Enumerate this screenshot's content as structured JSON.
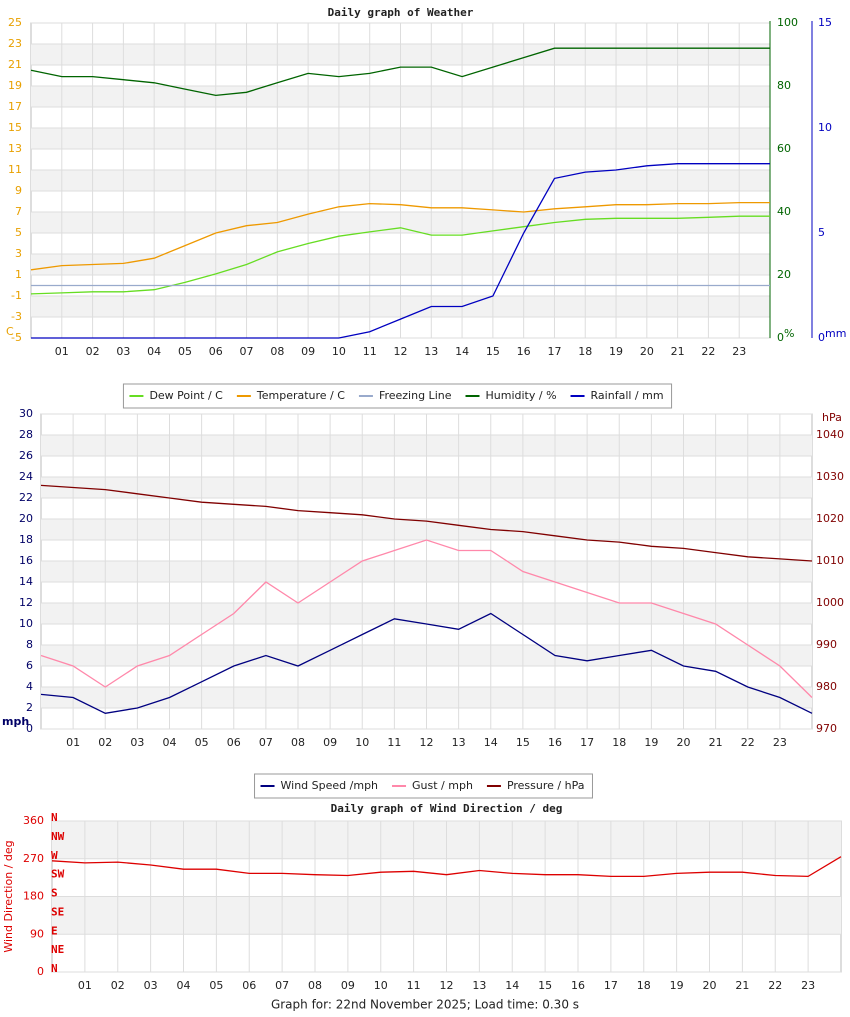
{
  "chart_data": [
    {
      "type": "line",
      "title": "Daily graph of Weather",
      "x": [
        0,
        1,
        2,
        3,
        4,
        5,
        6,
        7,
        8,
        9,
        10,
        11,
        12,
        13,
        14,
        15,
        16,
        17,
        18,
        19,
        20,
        21,
        22,
        23,
        24
      ],
      "xlim": [
        0,
        24
      ],
      "xticks": [
        {
          "value": 1,
          "label": "01"
        },
        {
          "value": 2,
          "label": "02"
        },
        {
          "value": 3,
          "label": "03"
        },
        {
          "value": 4,
          "label": "04"
        },
        {
          "value": 5,
          "label": "05"
        },
        {
          "value": 6,
          "label": "06"
        },
        {
          "value": 7,
          "label": "07"
        },
        {
          "value": 8,
          "label": "08"
        },
        {
          "value": 9,
          "label": "09"
        },
        {
          "value": 10,
          "label": "10"
        },
        {
          "value": 11,
          "label": "11"
        },
        {
          "value": 12,
          "label": "12"
        },
        {
          "value": 13,
          "label": "13"
        },
        {
          "value": 14,
          "label": "14"
        },
        {
          "value": 15,
          "label": "15"
        },
        {
          "value": 16,
          "label": "16"
        },
        {
          "value": 17,
          "label": "17"
        },
        {
          "value": 18,
          "label": "18"
        },
        {
          "value": 19,
          "label": "19"
        },
        {
          "value": 20,
          "label": "20"
        },
        {
          "value": 21,
          "label": "21"
        },
        {
          "value": 22,
          "label": "22"
        },
        {
          "value": 23,
          "label": "23"
        }
      ],
      "ylabel": "C",
      "ylim": [
        -5,
        25
      ],
      "yticks": [
        -5,
        -3,
        -1,
        1,
        3,
        5,
        7,
        9,
        11,
        13,
        15,
        17,
        19,
        21,
        23,
        25
      ],
      "ycolor": "#e8a000",
      "y2label": "%",
      "y2lim": [
        0,
        100
      ],
      "y2ticks": [
        0,
        20,
        40,
        60,
        80,
        100
      ],
      "y2color": "#006400",
      "y3label": "mm",
      "y3lim": [
        0,
        15
      ],
      "y3ticks": [
        0,
        5,
        10,
        15
      ],
      "y3color": "#0000c0",
      "grid": true,
      "series": [
        {
          "name": "Dew Point / C",
          "color": "#66dd22",
          "axis": "y",
          "values": [
            -0.8,
            -0.7,
            -0.6,
            -0.6,
            -0.4,
            0.3,
            1.1,
            2.0,
            3.2,
            4.0,
            4.7,
            5.1,
            5.5,
            4.8,
            4.8,
            5.2,
            5.6,
            6.0,
            6.3,
            6.4,
            6.4,
            6.4,
            6.5,
            6.6,
            6.6
          ]
        },
        {
          "name": "Temperature / C",
          "color": "#ee9900",
          "axis": "y",
          "values": [
            1.5,
            1.9,
            2.0,
            2.1,
            2.6,
            3.8,
            5.0,
            5.7,
            6.0,
            6.8,
            7.5,
            7.8,
            7.7,
            7.4,
            7.4,
            7.2,
            7.0,
            7.3,
            7.5,
            7.7,
            7.7,
            7.8,
            7.8,
            7.9,
            7.9
          ]
        },
        {
          "name": "Freezing Line",
          "color": "#99aacc",
          "axis": "y",
          "values": [
            0,
            0,
            0,
            0,
            0,
            0,
            0,
            0,
            0,
            0,
            0,
            0,
            0,
            0,
            0,
            0,
            0,
            0,
            0,
            0,
            0,
            0,
            0,
            0,
            0
          ]
        },
        {
          "name": "Humidity / %",
          "color": "#006400",
          "axis": "y2",
          "values": [
            85,
            83,
            83,
            82,
            81,
            79,
            77,
            78,
            81,
            84,
            83,
            84,
            86,
            86,
            83,
            86,
            89,
            92,
            92,
            92,
            92,
            92,
            92,
            92,
            92
          ]
        },
        {
          "name": "Rainfall / mm",
          "color": "#0000c0",
          "axis": "y3",
          "values": [
            0,
            0,
            0,
            0,
            0,
            0,
            0,
            0,
            0,
            0,
            0,
            0.3,
            0.9,
            1.5,
            1.5,
            2.0,
            5.0,
            7.6,
            7.9,
            8.0,
            8.2,
            8.3,
            8.3,
            8.3,
            8.3
          ]
        }
      ]
    },
    {
      "type": "line",
      "x": [
        0,
        1,
        2,
        3,
        4,
        5,
        6,
        7,
        8,
        9,
        10,
        11,
        12,
        13,
        14,
        15,
        16,
        17,
        18,
        19,
        20,
        21,
        22,
        23,
        24
      ],
      "xlim": [
        0,
        24
      ],
      "xticks": [
        {
          "value": 1,
          "label": "01"
        },
        {
          "value": 2,
          "label": "02"
        },
        {
          "value": 3,
          "label": "03"
        },
        {
          "value": 4,
          "label": "04"
        },
        {
          "value": 5,
          "label": "05"
        },
        {
          "value": 6,
          "label": "06"
        },
        {
          "value": 7,
          "label": "07"
        },
        {
          "value": 8,
          "label": "08"
        },
        {
          "value": 9,
          "label": "09"
        },
        {
          "value": 10,
          "label": "10"
        },
        {
          "value": 11,
          "label": "11"
        },
        {
          "value": 12,
          "label": "12"
        },
        {
          "value": 13,
          "label": "13"
        },
        {
          "value": 14,
          "label": "14"
        },
        {
          "value": 15,
          "label": "15"
        },
        {
          "value": 16,
          "label": "16"
        },
        {
          "value": 17,
          "label": "17"
        },
        {
          "value": 18,
          "label": "18"
        },
        {
          "value": 19,
          "label": "19"
        },
        {
          "value": 20,
          "label": "20"
        },
        {
          "value": 21,
          "label": "21"
        },
        {
          "value": 22,
          "label": "22"
        },
        {
          "value": 23,
          "label": "23"
        }
      ],
      "ylabel": "mph",
      "ylim": [
        0,
        30
      ],
      "yticks": [
        0,
        2,
        4,
        6,
        8,
        10,
        12,
        14,
        16,
        18,
        20,
        22,
        24,
        26,
        28,
        30
      ],
      "ycolor": "#000066",
      "y2label": "hPa",
      "y2lim": [
        970,
        1045
      ],
      "y2ticks": [
        970,
        980,
        990,
        1000,
        1010,
        1020,
        1030,
        1040
      ],
      "y2color": "#800000",
      "grid": true,
      "series": [
        {
          "name": "Wind Speed /mph",
          "color": "#000080",
          "axis": "y",
          "values": [
            3.3,
            3.0,
            1.5,
            2,
            3,
            4.5,
            6,
            7,
            6,
            7.5,
            9,
            10.5,
            10,
            9.5,
            11,
            9,
            7,
            6.5,
            7,
            7.5,
            6,
            5.5,
            4,
            3,
            1.5
          ]
        },
        {
          "name": "Gust / mph",
          "color": "#ff88aa",
          "axis": "y",
          "values": [
            7,
            6,
            4,
            6,
            7,
            9,
            11,
            14,
            12,
            14,
            16,
            17,
            18,
            17,
            17,
            15,
            14,
            13,
            12,
            12,
            11,
            10,
            8,
            6,
            3
          ]
        },
        {
          "name": "Pressure / hPa",
          "color": "#800000",
          "axis": "y2",
          "values": [
            1028,
            1027.5,
            1027,
            1026,
            1025,
            1024,
            1023.5,
            1023,
            1022,
            1021.5,
            1021,
            1020,
            1019.5,
            1018.5,
            1017.5,
            1017,
            1016,
            1015,
            1014.5,
            1013.5,
            1013,
            1012,
            1011,
            1010.5,
            1010
          ]
        }
      ]
    },
    {
      "type": "line",
      "title": "Daily graph of Wind Direction / deg",
      "x": [
        0,
        1,
        2,
        3,
        4,
        5,
        6,
        7,
        8,
        9,
        10,
        11,
        12,
        13,
        14,
        15,
        16,
        17,
        18,
        19,
        20,
        21,
        22,
        23,
        24
      ],
      "xlim": [
        0,
        24
      ],
      "xticks": [
        {
          "value": 1,
          "label": "01"
        },
        {
          "value": 2,
          "label": "02"
        },
        {
          "value": 3,
          "label": "03"
        },
        {
          "value": 4,
          "label": "04"
        },
        {
          "value": 5,
          "label": "05"
        },
        {
          "value": 6,
          "label": "06"
        },
        {
          "value": 7,
          "label": "07"
        },
        {
          "value": 8,
          "label": "08"
        },
        {
          "value": 9,
          "label": "09"
        },
        {
          "value": 10,
          "label": "10"
        },
        {
          "value": 11,
          "label": "11"
        },
        {
          "value": 12,
          "label": "12"
        },
        {
          "value": 13,
          "label": "13"
        },
        {
          "value": 14,
          "label": "14"
        },
        {
          "value": 15,
          "label": "15"
        },
        {
          "value": 16,
          "label": "16"
        },
        {
          "value": 17,
          "label": "17"
        },
        {
          "value": 18,
          "label": "18"
        },
        {
          "value": 19,
          "label": "19"
        },
        {
          "value": 20,
          "label": "20"
        },
        {
          "value": 21,
          "label": "21"
        },
        {
          "value": 22,
          "label": "22"
        },
        {
          "value": 23,
          "label": "23"
        }
      ],
      "ylabel": "Wind Direction / deg",
      "ylim": [
        0,
        360
      ],
      "yticks": [
        0,
        90,
        180,
        270,
        360
      ],
      "ycolor": "#dd0000",
      "compass_ticks": [
        {
          "value": 0,
          "label": "N"
        },
        {
          "value": 45,
          "label": "NE"
        },
        {
          "value": 90,
          "label": "E"
        },
        {
          "value": 135,
          "label": "SE"
        },
        {
          "value": 180,
          "label": "S"
        },
        {
          "value": 225,
          "label": "SW"
        },
        {
          "value": 270,
          "label": "W"
        },
        {
          "value": 315,
          "label": "NW"
        },
        {
          "value": 360,
          "label": "N"
        }
      ],
      "grid": true,
      "series": [
        {
          "color": "#dd0000",
          "axis": "y",
          "values": [
            265,
            260,
            262,
            255,
            245,
            245,
            235,
            235,
            232,
            230,
            238,
            240,
            232,
            242,
            235,
            232,
            232,
            228,
            228,
            235,
            238,
            238,
            230,
            228,
            275
          ]
        }
      ]
    }
  ],
  "footer": "Graph for: 22nd November 2025; Load time: 0.30 s"
}
